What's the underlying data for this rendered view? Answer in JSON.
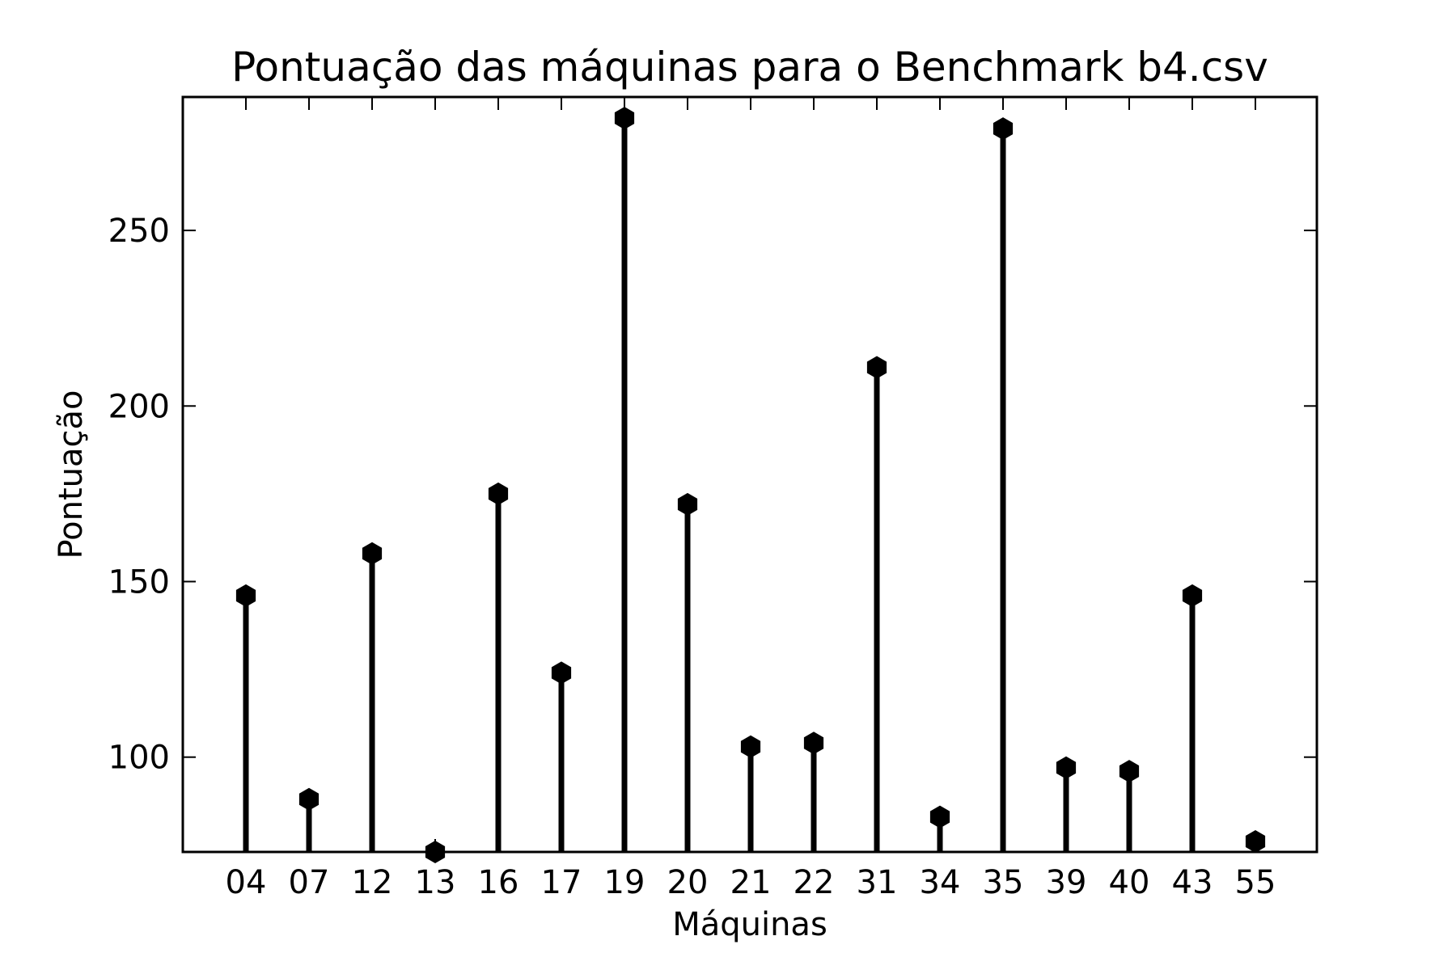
{
  "chart_data": {
    "type": "stem",
    "title": "Pontuação das máquinas para o Benchmark b4.csv",
    "xlabel": "Máquinas",
    "ylabel": "Pontuação",
    "categories": [
      "04",
      "07",
      "12",
      "13",
      "16",
      "17",
      "19",
      "20",
      "21",
      "22",
      "31",
      "34",
      "35",
      "39",
      "40",
      "43",
      "55"
    ],
    "values": [
      146,
      88,
      158,
      73,
      175,
      124,
      282,
      172,
      103,
      104,
      211,
      83,
      279,
      97,
      96,
      146,
      76
    ],
    "ylim": [
      73,
      288
    ],
    "yticks": [
      100,
      150,
      200,
      250
    ],
    "marker": "hexagon",
    "grid": false,
    "color": "#000000"
  }
}
